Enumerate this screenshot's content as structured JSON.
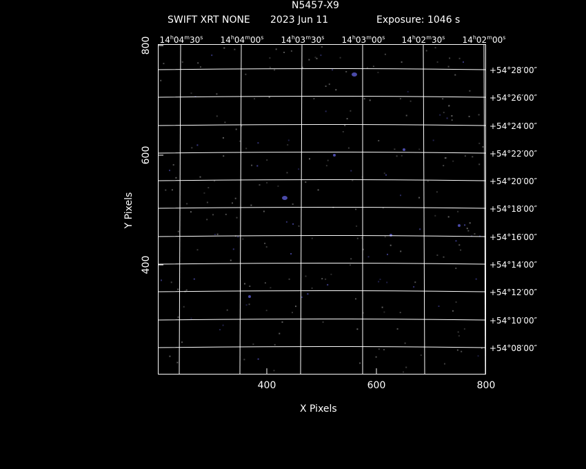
{
  "header": {
    "object_name": "N5457-X9",
    "instrument": "SWIFT XRT NONE",
    "date": "2023 Jun 11",
    "exposure": "Exposure: 1046 s"
  },
  "axes": {
    "xlabel": "X Pixels",
    "ylabel": "Y Pixels",
    "x_ticks": [
      "400",
      "600",
      "800"
    ],
    "y_ticks": [
      "800",
      "600",
      "400"
    ]
  },
  "ra_labels": [
    {
      "h": "14",
      "m": "04",
      "s": "30"
    },
    {
      "h": "14",
      "m": "04",
      "s": "00"
    },
    {
      "h": "14",
      "m": "03",
      "s": "30"
    },
    {
      "h": "14",
      "m": "03",
      "s": "00"
    },
    {
      "h": "14",
      "m": "02",
      "s": "30"
    },
    {
      "h": "14",
      "m": "02",
      "s": "00"
    }
  ],
  "dec_labels": [
    "+54°28′00″",
    "+54°26′00″",
    "+54°24′00″",
    "+54°22′00″",
    "+54°20′00″",
    "+54°18′00″",
    "+54°16′00″",
    "+54°14′00″",
    "+54°12′00″",
    "+54°10′00″",
    "+54°08′00″"
  ],
  "colors": {
    "background": "#000000",
    "grid": "#ffffff",
    "source": "#4a4aa8",
    "noise": "#777777"
  }
}
